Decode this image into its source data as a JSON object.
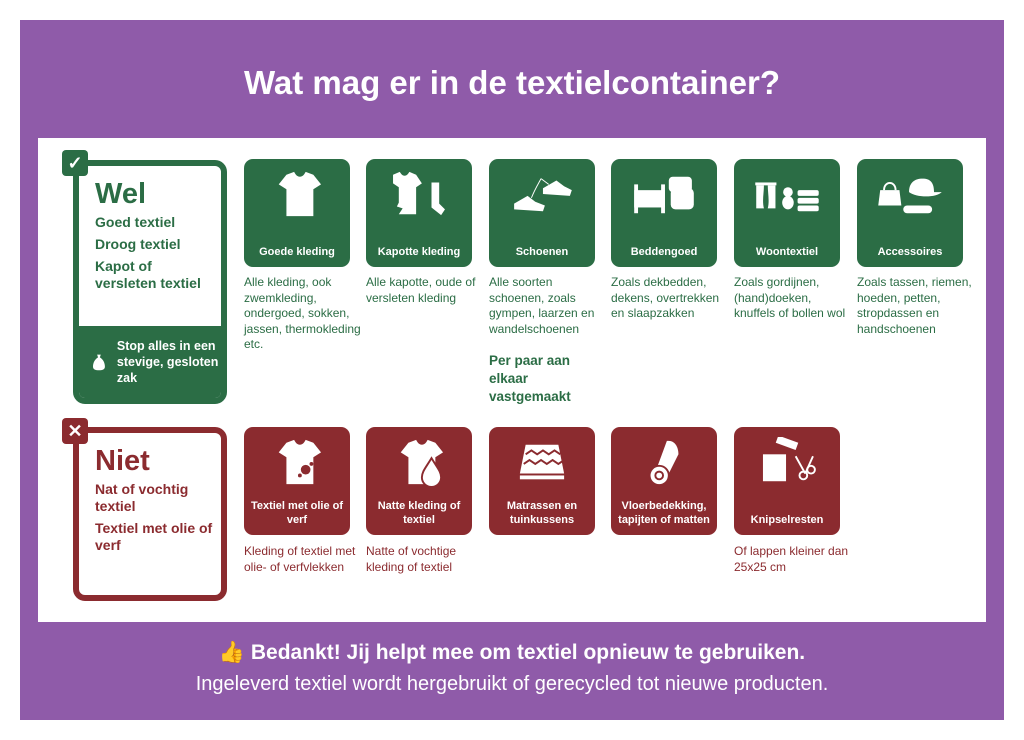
{
  "colors": {
    "background": "#8f5ba9",
    "wel": "#2b6d45",
    "niet": "#8b2b2f"
  },
  "title": "Wat mag er in de textielcontainer?",
  "wel": {
    "heading": "Wel",
    "items": [
      "Goed textiel",
      "Droog textiel",
      "Kapot of versleten textiel"
    ],
    "bag_text": "Stop alles in een stevige, gesloten zak",
    "icon": "check-icon"
  },
  "wel_tiles": [
    {
      "label": "Goede kleding",
      "desc": "Alle kleding, ook zwemkleding, ondergoed, sokken, jassen, thermokleding etc.",
      "icon": "tshirt-icon"
    },
    {
      "label": "Kapotte kleding",
      "desc": "Alle kapotte, oude of versleten kleding",
      "icon": "torn-shirt-sock-icon"
    },
    {
      "label": "Schoenen",
      "desc": "Alle soorten schoenen, zoals gympen, laarzen en wandelschoenen",
      "icon": "shoes-icon"
    },
    {
      "label": "Beddengoed",
      "desc": "Zoals dekbedden, dekens, overtrekken en slaapzakken",
      "icon": "bed-pillows-icon"
    },
    {
      "label": "Woontextiel",
      "desc": "Zoals gordijnen, (hand)doeken, knuffels of bollen wol",
      "icon": "curtains-teddy-towels-icon"
    },
    {
      "label": "Accessoires",
      "desc": "Zoals tassen, riemen, hoeden, petten, stropdassen en handschoenen",
      "icon": "bag-hat-belt-icon"
    }
  ],
  "schoenen_note": "Per paar aan elkaar vastgemaakt",
  "niet": {
    "heading": "Niet",
    "items": [
      "Nat of vochtig textiel",
      "Textiel met olie of verf"
    ],
    "icon": "x-icon"
  },
  "niet_tiles": [
    {
      "label": "Textiel met olie of verf",
      "desc": "Kleding of textiel met olie- of verfvlekken",
      "icon": "stained-shirt-icon"
    },
    {
      "label": "Natte kleding of textiel",
      "desc": "Natte of vochtige kleding of textiel",
      "icon": "wet-shirt-icon"
    },
    {
      "label": "Matrassen en tuinkussens",
      "desc": "",
      "icon": "mattress-icon"
    },
    {
      "label": "Vloerbedekking, tapijten of matten",
      "desc": "",
      "icon": "rug-roll-icon"
    },
    {
      "label": "Knipselresten",
      "desc": "Of lappen kleiner dan 25x25 cm",
      "icon": "scraps-scissors-icon"
    }
  ],
  "footer": {
    "line1": "Bedankt! Jij helpt mee om textiel opnieuw te gebruiken.",
    "line2": "Ingeleverd textiel wordt hergebruikt of gerecycled tot nieuwe producten.",
    "icon": "thumbs-up-icon"
  }
}
